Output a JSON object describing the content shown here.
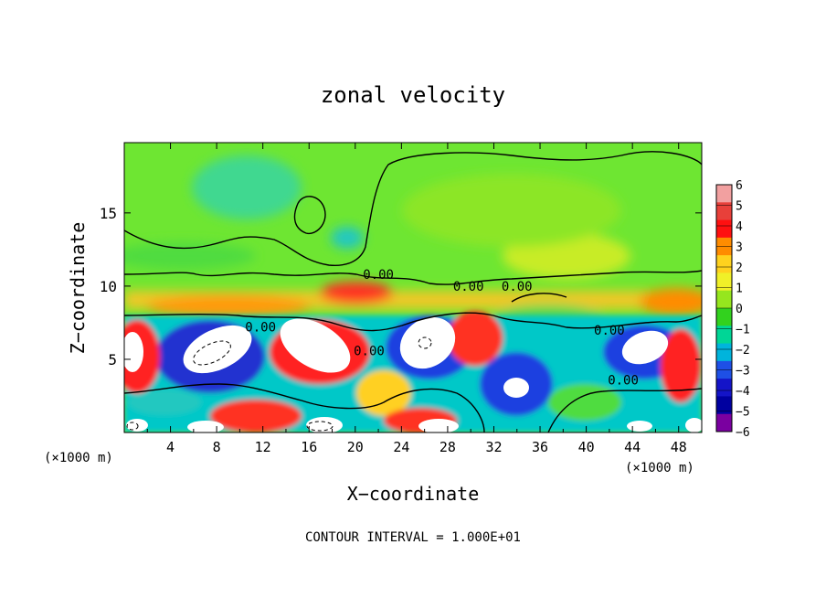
{
  "chart_data": {
    "type": "heatmap",
    "title": "zonal velocity",
    "xlabel": "X−coordinate",
    "ylabel": "Z−coordinate",
    "x_unit_label_left": "(×1000 m)",
    "x_unit_label_right": "(×1000 m)",
    "xlim": [
      0,
      50
    ],
    "ylim": [
      0,
      19.8
    ],
    "x_ticks": [
      4,
      8,
      12,
      16,
      20,
      24,
      28,
      32,
      36,
      40,
      44,
      48
    ],
    "y_ticks": [
      5,
      10,
      15
    ],
    "footer": "CONTOUR INTERVAL = 1.000E+01",
    "colorbar": {
      "levels": [
        6,
        5,
        4,
        3,
        2,
        1,
        0,
        -1,
        -2,
        -3,
        -4,
        -5,
        -6
      ],
      "colors": [
        "#f2a0a0",
        "#e8403a",
        "#ff1010",
        "#ff8c00",
        "#ffd21e",
        "#f0f028",
        "#96e61e",
        "#32d21e",
        "#00d696",
        "#00b4dc",
        "#1e50e6",
        "#1414c8",
        "#0000a0",
        "#7a00a0"
      ]
    },
    "contour_labels": [
      {
        "text": "0.00",
        "x": 22.0,
        "z": 10.8
      },
      {
        "text": "0.00",
        "x": 29.8,
        "z": 10.0
      },
      {
        "text": "0.00",
        "x": 34.0,
        "z": 10.0
      },
      {
        "text": "0.00",
        "x": 11.8,
        "z": 7.2
      },
      {
        "text": "0.00",
        "x": 21.2,
        "z": 5.6
      },
      {
        "text": "0.00",
        "x": 42.0,
        "z": 7.0
      },
      {
        "text": "0.00",
        "x": 43.2,
        "z": 3.6
      }
    ]
  }
}
